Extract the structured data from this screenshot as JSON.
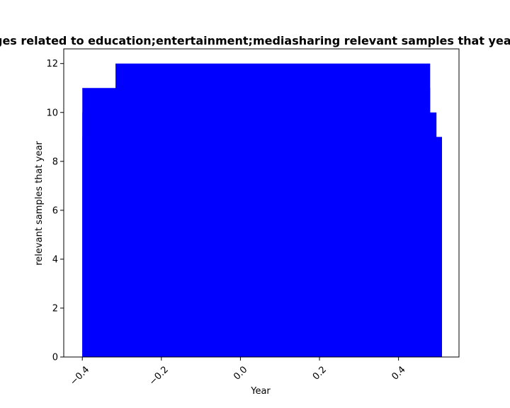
{
  "chart_data": {
    "type": "bar",
    "title": "Number of images related to education;entertainment;mediasharing relevant samples that year in the dataset",
    "xlabel": "Year",
    "ylabel": "relevant samples that year",
    "xlim": [
      -0.447,
      0.553
    ],
    "ylim": [
      0,
      12.6
    ],
    "x_ticks": [
      -0.4,
      -0.2,
      0.0,
      0.2,
      0.4
    ],
    "x_tick_labels": [
      "−0.4",
      "−0.2",
      "0.0",
      "0.2",
      "0.4"
    ],
    "y_ticks": [
      0,
      2,
      4,
      6,
      8,
      10,
      12
    ],
    "y_tick_labels": [
      "0",
      "2",
      "4",
      "6",
      "8",
      "10",
      "12"
    ],
    "bar_color": "#0000ff",
    "bars": [
      {
        "x_start": -0.4,
        "x_end": 0.51,
        "value": 9
      },
      {
        "x_start": -0.4,
        "x_end": 0.496,
        "value": 10
      },
      {
        "x_start": -0.4,
        "x_end": 0.48,
        "value": 11
      },
      {
        "x_start": -0.316,
        "x_end": 0.48,
        "value": 12
      }
    ]
  }
}
